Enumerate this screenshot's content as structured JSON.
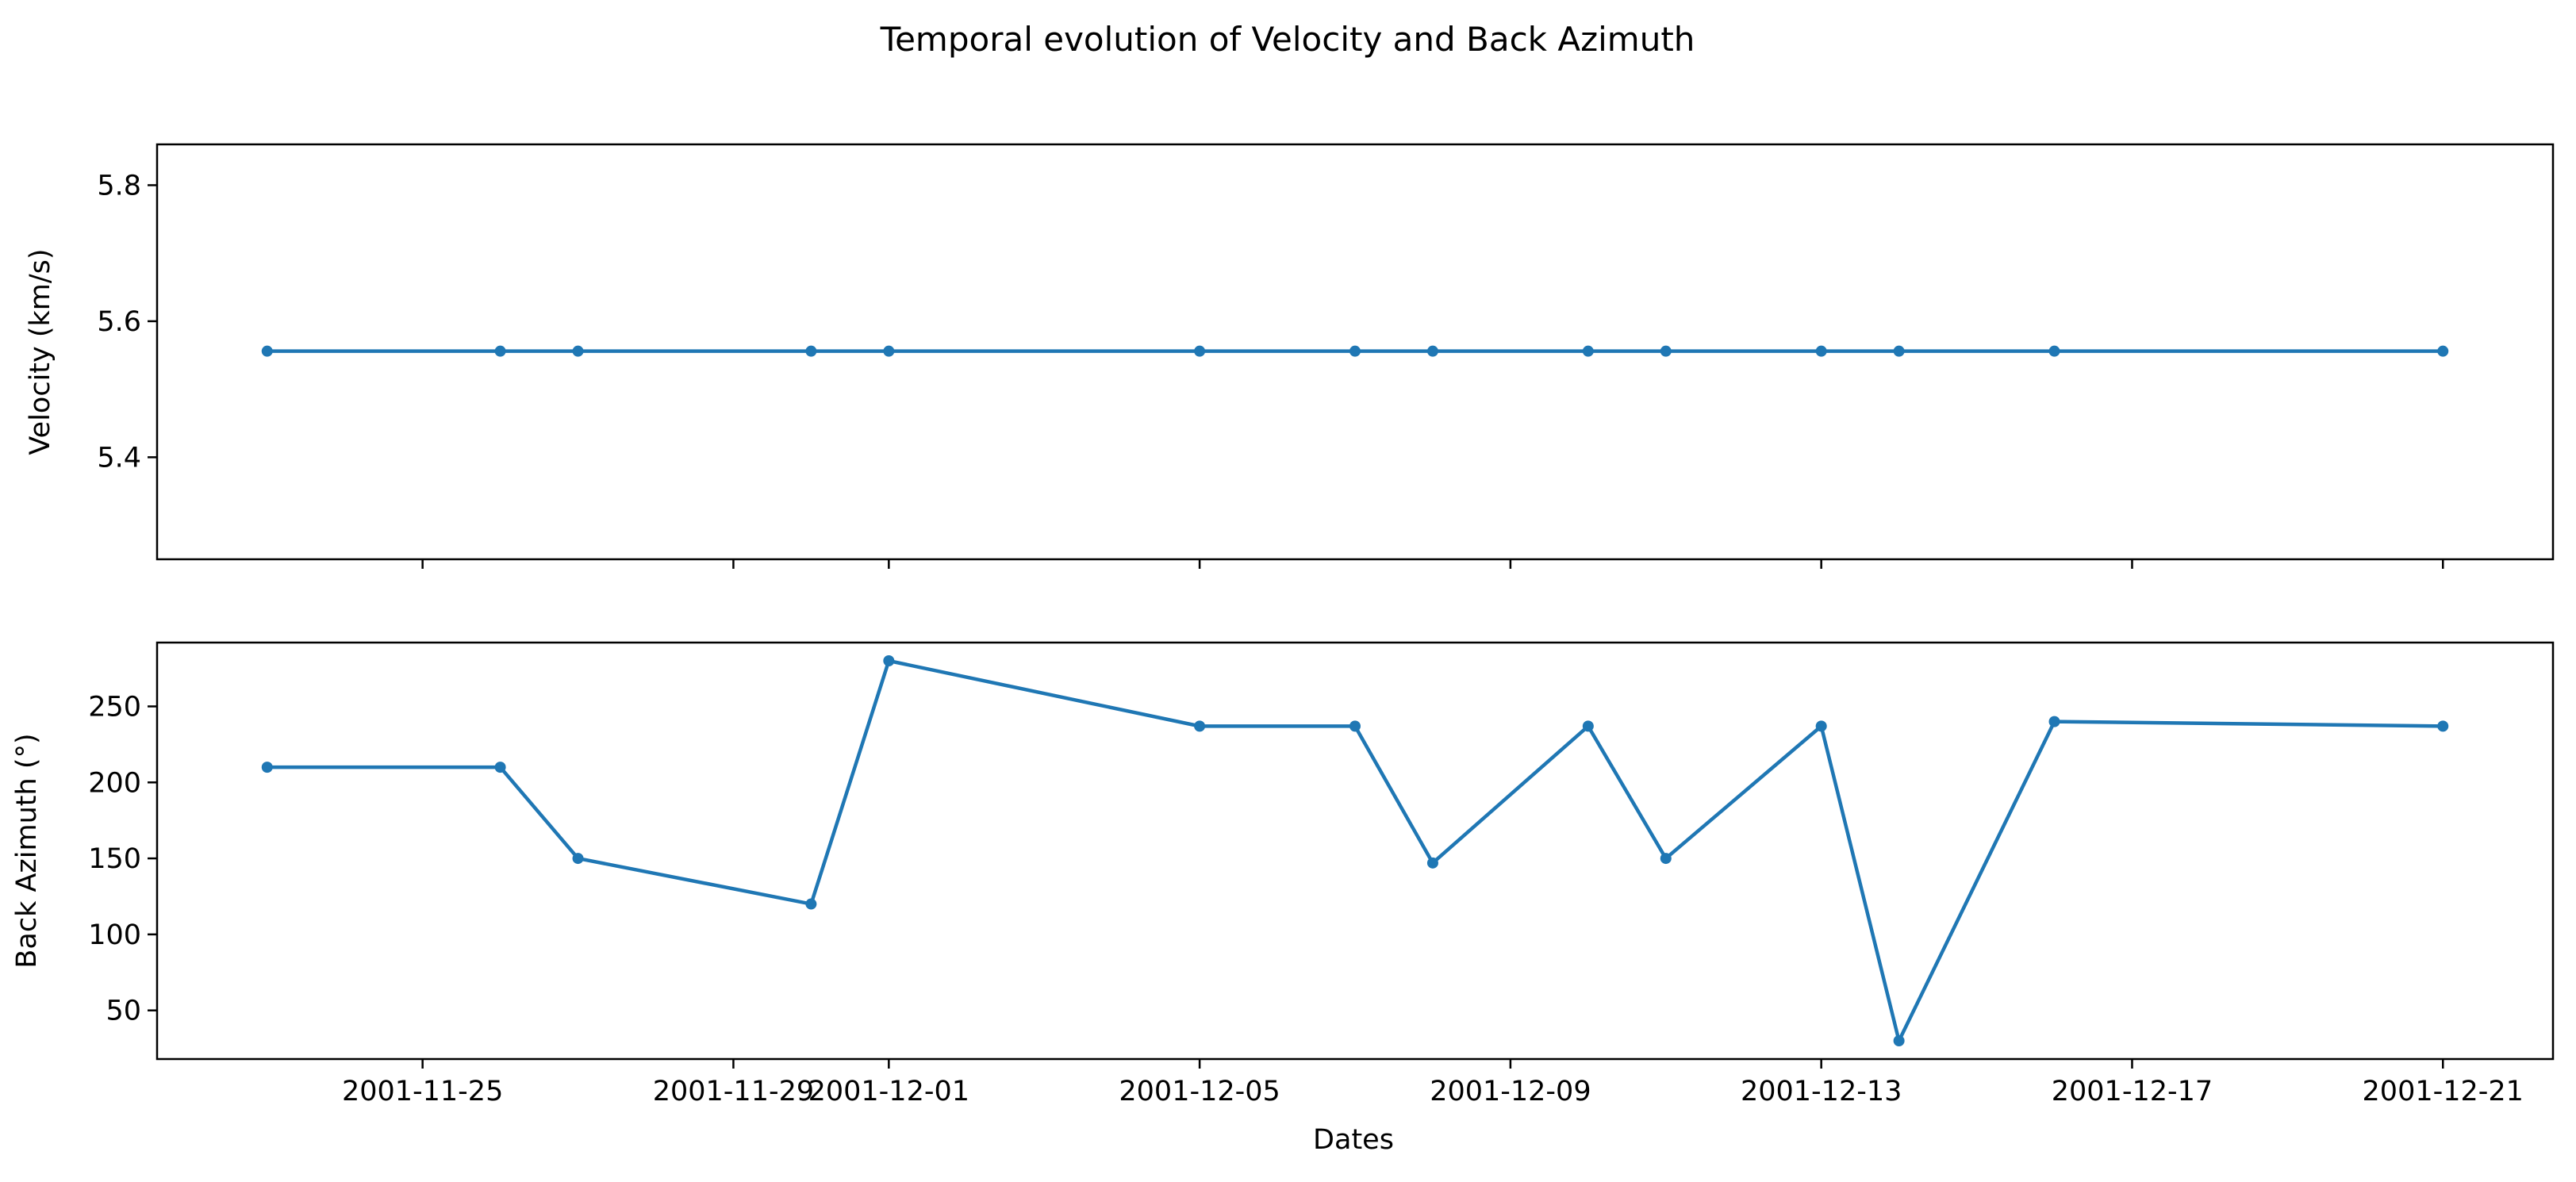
{
  "chart_data": [
    {
      "type": "line",
      "panel": "top",
      "ylabel": "Velocity (km/s)",
      "ylim": [
        5.25,
        5.86
      ],
      "yticks": [
        5.4,
        5.6,
        5.8
      ],
      "series": [
        {
          "color": "#1f77b4",
          "x": [
            "2001-11-23",
            "2001-11-26",
            "2001-11-27",
            "2001-11-30",
            "2001-12-01",
            "2001-12-05",
            "2001-12-07",
            "2001-12-08",
            "2001-12-10",
            "2001-12-11",
            "2001-12-13",
            "2001-12-14",
            "2001-12-16",
            "2001-12-21"
          ],
          "values": [
            5.556,
            5.556,
            5.556,
            5.556,
            5.556,
            5.556,
            5.556,
            5.556,
            5.556,
            5.556,
            5.556,
            5.556,
            5.556,
            5.556
          ]
        }
      ]
    },
    {
      "type": "line",
      "panel": "bottom",
      "xlabel": "Dates",
      "ylabel": "Back Azimuth (°)",
      "ylim": [
        18,
        292
      ],
      "yticks": [
        50,
        100,
        150,
        200,
        250
      ],
      "series": [
        {
          "color": "#1f77b4",
          "x": [
            "2001-11-23",
            "2001-11-26",
            "2001-11-27",
            "2001-11-30",
            "2001-12-01",
            "2001-12-05",
            "2001-12-07",
            "2001-12-08",
            "2001-12-10",
            "2001-12-11",
            "2001-12-13",
            "2001-12-14",
            "2001-12-16",
            "2001-12-21"
          ],
          "values": [
            210,
            210,
            150,
            120,
            280,
            237,
            237,
            147,
            237,
            150,
            237,
            30,
            240,
            237
          ]
        }
      ]
    }
  ],
  "title": "Temporal evolution of Velocity and Back Azimuth",
  "xaxis": {
    "ticks": [
      "2001-11-25",
      "2001-11-29",
      "2001-12-01",
      "2001-12-05",
      "2001-12-09",
      "2001-12-13",
      "2001-12-17",
      "2001-12-21"
    ],
    "xlim": [
      "2001-11-21T14:00",
      "2001-12-22T10:00"
    ]
  }
}
